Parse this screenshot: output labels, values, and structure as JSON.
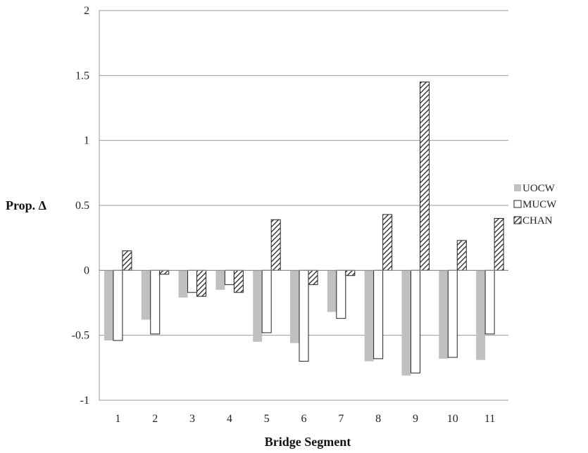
{
  "chart_data": {
    "type": "bar",
    "title": "",
    "xlabel": "Bridge Segment",
    "ylabel": "Prop. Δ",
    "ylim": [
      -1,
      2
    ],
    "yticks": [
      -1,
      -0.5,
      0,
      0.5,
      1,
      1.5,
      2
    ],
    "ytick_labels": [
      "-1",
      "-0.5",
      "0",
      "0.5",
      "1",
      "1.5",
      "2"
    ],
    "grid": "horizontal",
    "legend_position": "right",
    "categories": [
      "1",
      "2",
      "3",
      "4",
      "5",
      "6",
      "7",
      "8",
      "9",
      "10",
      "11"
    ],
    "series": [
      {
        "name": "UOCW",
        "style": "solid",
        "color": "#c0c0c0",
        "values": [
          -0.54,
          -0.38,
          -0.21,
          -0.15,
          -0.55,
          -0.56,
          -0.32,
          -0.7,
          -0.81,
          -0.68,
          -0.69
        ]
      },
      {
        "name": "MUCW",
        "style": "outline",
        "color": "#ffffff",
        "values": [
          -0.54,
          -0.49,
          -0.17,
          -0.11,
          -0.48,
          -0.7,
          -0.37,
          -0.68,
          -0.79,
          -0.67,
          -0.49
        ]
      },
      {
        "name": "CHAN",
        "style": "hatched",
        "color": "#333333",
        "values": [
          0.15,
          -0.03,
          -0.2,
          -0.17,
          0.39,
          -0.11,
          -0.04,
          0.43,
          1.45,
          0.23,
          0.4
        ]
      }
    ]
  }
}
